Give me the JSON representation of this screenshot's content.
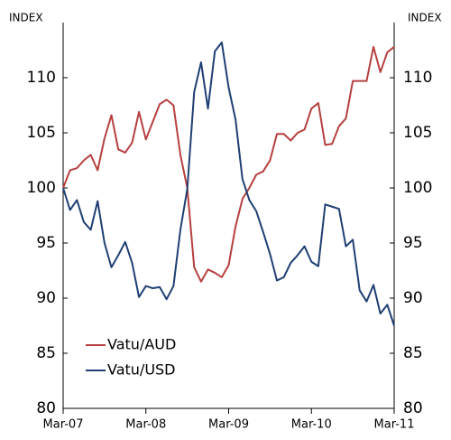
{
  "chart_data": {
    "type": "line",
    "ylabel": "INDEX",
    "y2label": "INDEX",
    "categories": [
      "Mar-07",
      null,
      null,
      null,
      null,
      null,
      null,
      null,
      null,
      null,
      null,
      null,
      "Mar-08",
      null,
      null,
      null,
      null,
      null,
      null,
      null,
      null,
      null,
      null,
      null,
      "Mar-09",
      null,
      null,
      null,
      null,
      null,
      null,
      null,
      null,
      null,
      null,
      null,
      "Mar-10",
      null,
      null,
      null,
      null,
      null,
      null,
      null,
      null,
      null,
      null,
      null,
      "Mar-11"
    ],
    "series": [
      {
        "name": "Vatu/AUD",
        "color": "#b5403f",
        "values": [
          100,
          101.6,
          101.8,
          102.5,
          103,
          101.6,
          104.5,
          106.6,
          103.5,
          103.2,
          104.1,
          106.9,
          104.4,
          106,
          107.6,
          108,
          107.5,
          103,
          100,
          92.8,
          91.5,
          92.6,
          92.3,
          91.9,
          93,
          96.5,
          99,
          100,
          101.2,
          101.5,
          102.5,
          104.9,
          104.9,
          104.3,
          105,
          105.3,
          107.2,
          107.7,
          103.9,
          104,
          105.6,
          106.3,
          109.7,
          109.7,
          109.7,
          112.8,
          110.5,
          112.3,
          112.8
        ]
      },
      {
        "name": "Vatu/USD",
        "color": "#1f3f73",
        "values": [
          100,
          98,
          98.9,
          96.9,
          96.2,
          98.8,
          95,
          92.8,
          93.9,
          95.1,
          93.2,
          90.1,
          91.1,
          90.9,
          91,
          89.9,
          91.1,
          96.2,
          99.9,
          108.7,
          111.4,
          107.2,
          112.4,
          113.2,
          109.1,
          106.2,
          100.8,
          98.9,
          97.9,
          96,
          94,
          91.6,
          91.9,
          93.2,
          93.9,
          94.7,
          93.3,
          92.9,
          98.5,
          98.3,
          98.1,
          94.7,
          95.3,
          90.7,
          89.7,
          91.2,
          88.6,
          89.4,
          87.5
        ]
      }
    ],
    "ylim": [
      80,
      115
    ],
    "yticks": [
      80,
      85,
      90,
      95,
      100,
      105,
      110
    ],
    "y2lim": [
      80,
      115
    ],
    "y2ticks": [
      80,
      85,
      90,
      95,
      100,
      105,
      110
    ]
  }
}
